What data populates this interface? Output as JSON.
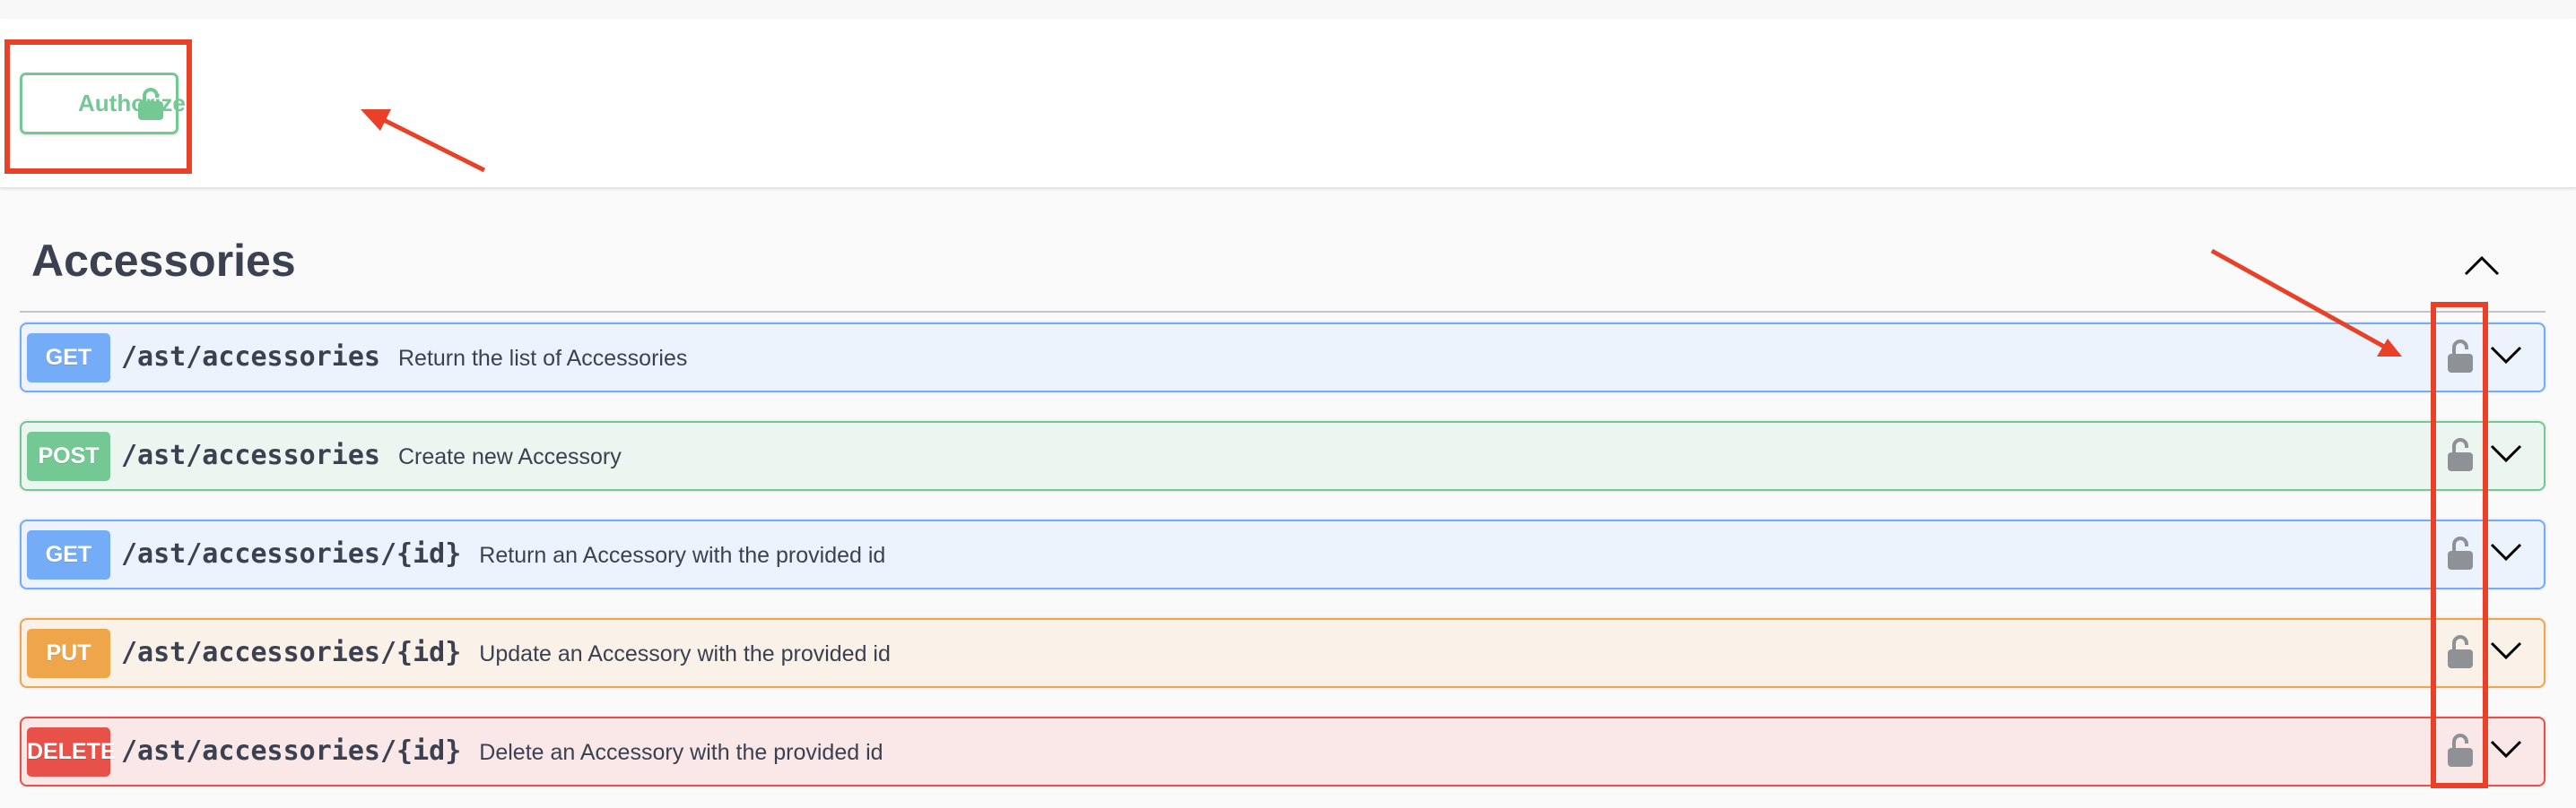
{
  "header": {
    "authorize_label": "Authorize",
    "authorize_icon": "unlock-icon",
    "authorize_color": "#73c894"
  },
  "section": {
    "title": "Accessories",
    "collapse_icon": "chevron-up-icon"
  },
  "operations": [
    {
      "method": "GET",
      "path": "/ast/accessories",
      "description": "Return the list of Accessories",
      "color": "#74acf7",
      "bg": "#ecf3fc",
      "border": "#74acf7",
      "lock_icon": "unlock-icon"
    },
    {
      "method": "POST",
      "path": "/ast/accessories",
      "description": "Create new Accessory",
      "color": "#73c894",
      "bg": "#ecf6f0",
      "border": "#73c894",
      "lock_icon": "unlock-icon"
    },
    {
      "method": "GET",
      "path": "/ast/accessories/{id}",
      "description": "Return an Accessory with the provided id",
      "color": "#74acf7",
      "bg": "#ecf3fc",
      "border": "#74acf7",
      "lock_icon": "unlock-icon"
    },
    {
      "method": "PUT",
      "path": "/ast/accessories/{id}",
      "description": "Update an Accessory with the provided id",
      "color": "#efa64a",
      "bg": "#faf2e9",
      "border": "#efa64a",
      "lock_icon": "unlock-icon"
    },
    {
      "method": "DELETE",
      "path": "/ast/accessories/{id}",
      "description": "Delete an Accessory with the provided id",
      "color": "#e8504a",
      "bg": "#f9e8e7",
      "border": "#e8504a",
      "lock_icon": "unlock-icon"
    }
  ],
  "annotation_color": "#e84128"
}
